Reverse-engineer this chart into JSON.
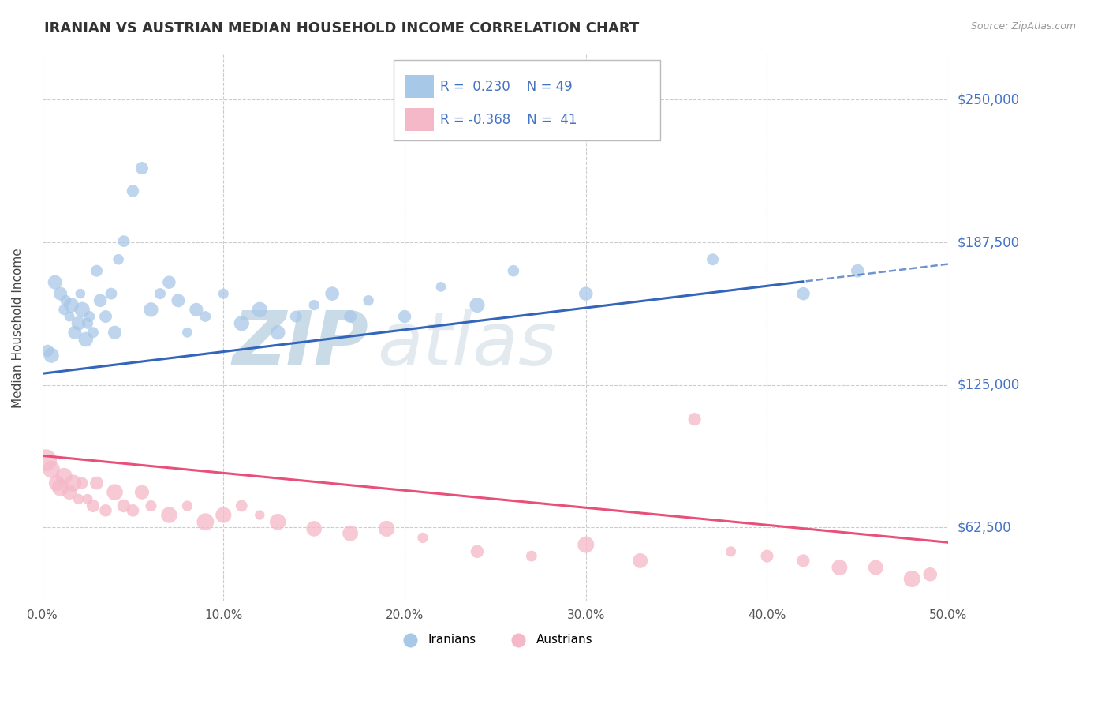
{
  "title": "IRANIAN VS AUSTRIAN MEDIAN HOUSEHOLD INCOME CORRELATION CHART",
  "source_text": "Source: ZipAtlas.com",
  "ylabel": "Median Household Income",
  "xlim": [
    0.0,
    50.0
  ],
  "ylim": [
    30000,
    270000
  ],
  "yticks": [
    62500,
    125000,
    187500,
    250000
  ],
  "ytick_labels": [
    "$62,500",
    "$125,000",
    "$187,500",
    "$250,000"
  ],
  "xticks": [
    0.0,
    10.0,
    20.0,
    30.0,
    40.0,
    50.0
  ],
  "xtick_labels": [
    "0.0%",
    "10.0%",
    "20.0%",
    "30.0%",
    "40.0%",
    "50.0%"
  ],
  "iranian_color": "#a8c8e8",
  "austrian_color": "#f5b8c8",
  "iranian_line_color": "#3366bb",
  "austrian_line_color": "#e8507a",
  "legend_color": "#4472c4",
  "r_iranian": 0.23,
  "n_iranian": 49,
  "r_austrian": -0.368,
  "n_austrian": 41,
  "grid_color": "#cccccc",
  "background_color": "#ffffff",
  "watermark_zip": "ZIP",
  "watermark_atlas": "atlas",
  "iranians_scatter_x": [
    0.3,
    0.5,
    0.7,
    1.0,
    1.2,
    1.3,
    1.5,
    1.6,
    1.8,
    2.0,
    2.1,
    2.2,
    2.4,
    2.5,
    2.6,
    2.8,
    3.0,
    3.2,
    3.5,
    3.8,
    4.0,
    4.2,
    4.5,
    5.0,
    5.5,
    6.0,
    6.5,
    7.0,
    7.5,
    8.0,
    8.5,
    9.0,
    10.0,
    11.0,
    12.0,
    13.0,
    14.0,
    15.0,
    16.0,
    17.0,
    18.0,
    20.0,
    22.0,
    24.0,
    26.0,
    30.0,
    37.0,
    42.0,
    45.0
  ],
  "iranians_scatter_y": [
    140000,
    138000,
    170000,
    165000,
    158000,
    162000,
    155000,
    160000,
    148000,
    152000,
    165000,
    158000,
    145000,
    152000,
    155000,
    148000,
    175000,
    162000,
    155000,
    165000,
    148000,
    180000,
    188000,
    210000,
    220000,
    158000,
    165000,
    170000,
    162000,
    148000,
    158000,
    155000,
    165000,
    152000,
    158000,
    148000,
    155000,
    160000,
    165000,
    155000,
    162000,
    155000,
    168000,
    160000,
    175000,
    165000,
    180000,
    165000,
    175000
  ],
  "austrians_scatter_x": [
    0.2,
    0.5,
    0.8,
    1.0,
    1.2,
    1.5,
    1.7,
    2.0,
    2.2,
    2.5,
    2.8,
    3.0,
    3.5,
    4.0,
    4.5,
    5.0,
    5.5,
    6.0,
    7.0,
    8.0,
    9.0,
    10.0,
    11.0,
    12.0,
    13.0,
    15.0,
    17.0,
    19.0,
    21.0,
    24.0,
    27.0,
    30.0,
    33.0,
    36.0,
    38.0,
    40.0,
    42.0,
    44.0,
    46.0,
    48.0,
    49.0
  ],
  "austrians_scatter_y": [
    92000,
    88000,
    82000,
    80000,
    85000,
    78000,
    82000,
    75000,
    82000,
    75000,
    72000,
    82000,
    70000,
    78000,
    72000,
    70000,
    78000,
    72000,
    68000,
    72000,
    65000,
    68000,
    72000,
    68000,
    65000,
    62000,
    60000,
    62000,
    58000,
    52000,
    50000,
    55000,
    48000,
    110000,
    52000,
    50000,
    48000,
    45000,
    45000,
    40000,
    42000
  ],
  "iran_line_x0": 0.0,
  "iran_line_y0": 130000,
  "iran_line_x1": 50.0,
  "iran_line_y1": 178000,
  "iran_solid_end": 42.0,
  "aus_line_x0": 0.0,
  "aus_line_y0": 94000,
  "aus_line_x1": 50.0,
  "aus_line_y1": 56000
}
